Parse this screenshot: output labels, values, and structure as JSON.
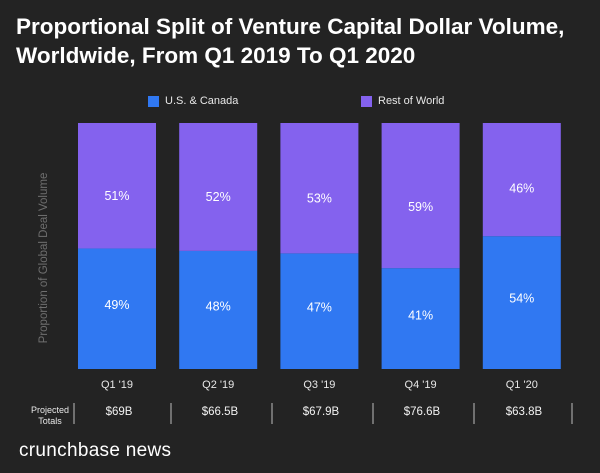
{
  "colors": {
    "background": "#232323",
    "us_canada": "#3078f2",
    "rest_of_world": "#8462ee",
    "text": "#ffffff",
    "muted": "#6f6f6f"
  },
  "chart_data": {
    "type": "bar",
    "stacked": true,
    "title": "Proportional Split of Venture Capital Dollar Volume, Worldwide, From Q1 2019 To Q1 2020",
    "xlabel": "",
    "ylabel": "Proportion of Global Deal Volume",
    "ylim": [
      0,
      100
    ],
    "categories": [
      "Q1 '19",
      "Q2 '19",
      "Q3 '19",
      "Q4 '19",
      "Q1 '20"
    ],
    "series": [
      {
        "name": "U.S. & Canada",
        "values": [
          49,
          48,
          47,
          41,
          54
        ],
        "labels": [
          "49%",
          "48%",
          "47%",
          "41%",
          "54%"
        ]
      },
      {
        "name": "Rest of World",
        "values": [
          51,
          52,
          53,
          59,
          46
        ],
        "labels": [
          "51%",
          "52%",
          "53%",
          "59%",
          "46%"
        ]
      }
    ],
    "legend_position": "top"
  },
  "totals": {
    "label": "Projected Totals",
    "values": [
      "$69B",
      "$66.5B",
      "$67.9B",
      "$76.6B",
      "$63.8B"
    ]
  },
  "brand": "crunchbase news"
}
